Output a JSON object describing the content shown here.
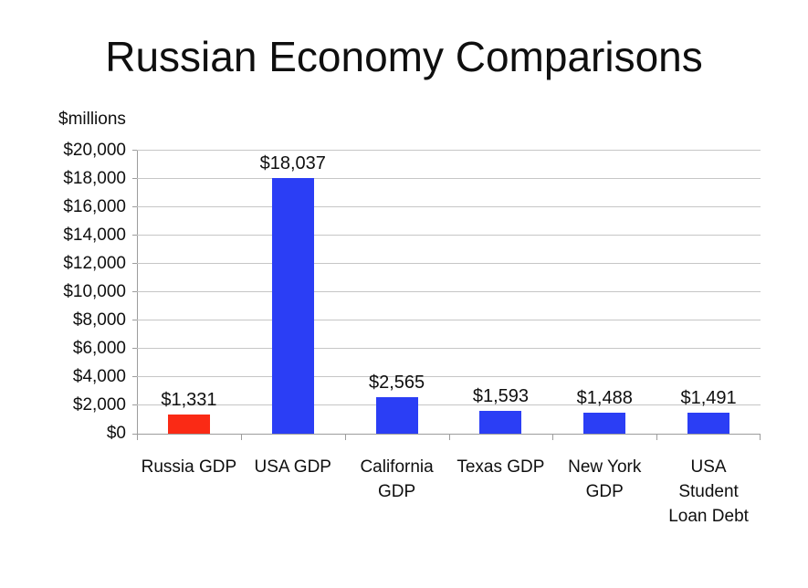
{
  "chart_data": {
    "type": "bar",
    "title": "Russian Economy Comparisons",
    "unit_label": "$millions",
    "categories": [
      "Russia GDP",
      "USA GDP",
      "California GDP",
      "Texas GDP",
      "New York GDP",
      "USA Student Loan Debt"
    ],
    "tick_labels": [
      "Russia GDP",
      "USA GDP",
      "California\nGDP",
      "Texas GDP",
      "New York\nGDP",
      "USA\nStudent\nLoan Debt"
    ],
    "values": [
      1331,
      18037,
      2565,
      1593,
      1488,
      1491
    ],
    "data_labels": [
      "$1,331",
      "$18,037",
      "$2,565",
      "$1,593",
      "$1,488",
      "$1,491"
    ],
    "bar_colors": [
      "#fa2a15",
      "#2b3ef5",
      "#2b3ef5",
      "#2b3ef5",
      "#2b3ef5",
      "#2b3ef5"
    ],
    "xlabel": "",
    "ylabel": "$millions",
    "ylim": [
      0,
      20000
    ],
    "y_tick_step": 2000,
    "y_tick_labels": [
      "$0",
      "$2,000",
      "$4,000",
      "$6,000",
      "$8,000",
      "$10,000",
      "$12,000",
      "$14,000",
      "$16,000",
      "$18,000",
      "$20,000"
    ],
    "grid": true,
    "legend": "none",
    "colors": {
      "bar_blue": "#2b3ef5",
      "bar_red": "#fa2a15",
      "gridline": "#c6c6c6",
      "axis": "#9d9d9d",
      "text": "#0f0f0f",
      "background": "#ffffff"
    }
  }
}
